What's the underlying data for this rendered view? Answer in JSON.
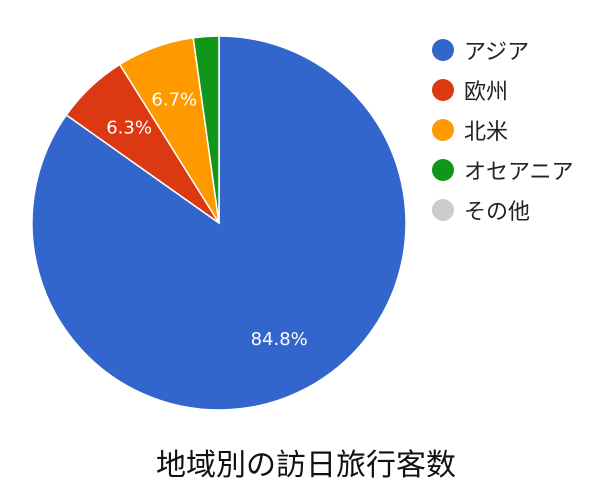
{
  "chart_data": {
    "type": "pie",
    "title": "地域別の訪日旅行客数",
    "legend_position": "right",
    "slices": [
      {
        "name": "アジア",
        "value": 84.8,
        "label": "84.8%",
        "color": "#3366cc"
      },
      {
        "name": "欧州",
        "value": 6.3,
        "label": "6.3%",
        "color": "#dc3912"
      },
      {
        "name": "北米",
        "value": 6.7,
        "label": "6.7%",
        "color": "#ff9900"
      },
      {
        "name": "オセアニア",
        "value": 2.2,
        "label": "",
        "color": "#109618"
      },
      {
        "name": "その他",
        "value": 0.0,
        "label": "",
        "color": "#cccccc"
      }
    ]
  }
}
